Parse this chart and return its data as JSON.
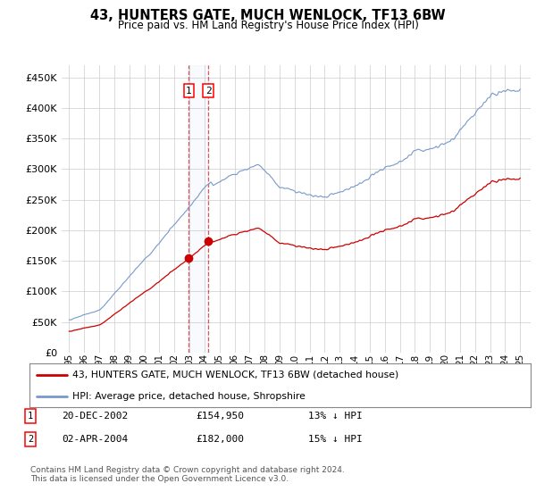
{
  "title": "43, HUNTERS GATE, MUCH WENLOCK, TF13 6BW",
  "subtitle": "Price paid vs. HM Land Registry's House Price Index (HPI)",
  "legend_line1": "43, HUNTERS GATE, MUCH WENLOCK, TF13 6BW (detached house)",
  "legend_line2": "HPI: Average price, detached house, Shropshire",
  "transaction1_date": "20-DEC-2002",
  "transaction1_price": "£154,950",
  "transaction1_hpi": "13% ↓ HPI",
  "transaction2_date": "02-APR-2004",
  "transaction2_price": "£182,000",
  "transaction2_hpi": "15% ↓ HPI",
  "footer": "Contains HM Land Registry data © Crown copyright and database right 2024.\nThis data is licensed under the Open Government Licence v3.0.",
  "ylim": [
    0,
    470000
  ],
  "yticks": [
    0,
    50000,
    100000,
    150000,
    200000,
    250000,
    300000,
    350000,
    400000,
    450000
  ],
  "hpi_color": "#7799cc",
  "price_color": "#cc0000",
  "background_color": "#ffffff",
  "grid_color": "#cccccc",
  "trans1_year": 2002.958,
  "trans2_year": 2004.25,
  "price1": 154950,
  "price2": 182000
}
